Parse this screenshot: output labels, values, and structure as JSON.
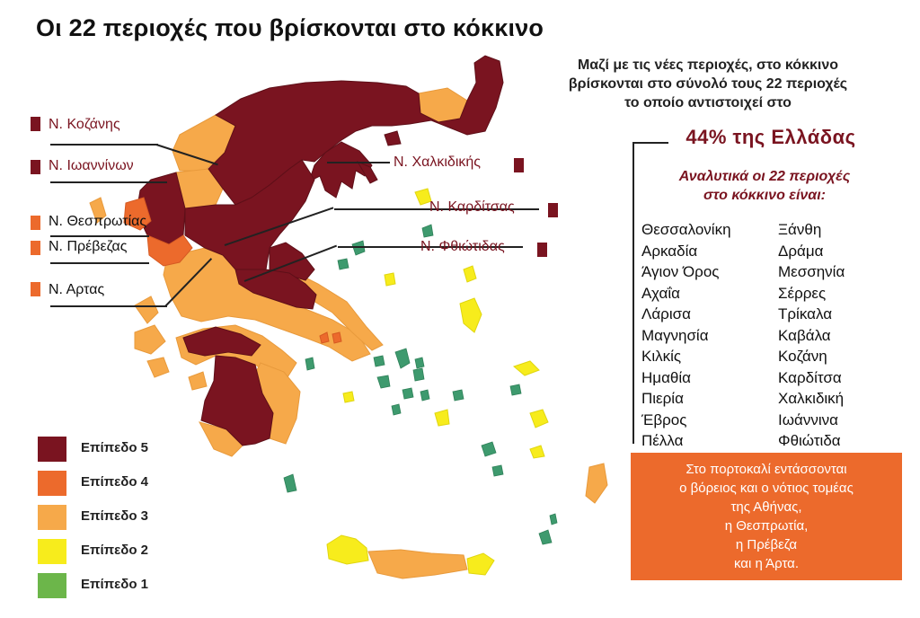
{
  "title": "Οι 22 περιοχές που βρίσκονται στο κόκκινο",
  "intro": [
    "Μαζί με τις νέες περιοχές, στο κόκκινο",
    "βρίσκονται στο σύνολό τους 22 περιοχές",
    "το οποίο αντιστοιχεί στο"
  ],
  "percentage": "44% της Ελλάδας",
  "list_heading": [
    "Αναλυτικά οι 22 περιοχές",
    "στο κόκκινο είναι:"
  ],
  "regions_left": [
    "Θεσσαλονίκη",
    "Αρκαδία",
    "Άγιον Όρος",
    "Αχαΐα",
    "Λάρισα",
    "Μαγνησία",
    "Κιλκίς",
    "Ημαθία",
    "Πιερία",
    "Έβρος",
    "Πέλλα"
  ],
  "regions_right": [
    "Ξάνθη",
    "Δράμα",
    "Μεσσηνία",
    "Σέρρες",
    "Τρίκαλα",
    "Καβάλα",
    "Κοζάνη",
    "Καρδίτσα",
    "Χαλκιδική",
    "Ιωάννινα",
    "Φθιώτιδα"
  ],
  "orange_note": [
    "Στο πορτοκαλί εντάσσονται",
    "ο βόρειος και ο νότιος τομέας",
    "της Αθήνας,",
    "η Θεσπρωτία,",
    "η Πρέβεζα",
    "και η Άρτα."
  ],
  "callouts": {
    "kozani": "Ν. Κοζάνης",
    "ioannina": "Ν. Ιωαννίνων",
    "thesprotia": "Ν. Θεσπρωτίας",
    "preveza": "Ν. Πρέβεζας",
    "arta": "Ν. Αρτας",
    "chalkidiki": "Ν. Χαλκιδικής",
    "karditsa": "Ν. Καρδίτσας",
    "fthiotida": "Ν. Φθιώτιδας"
  },
  "legend": [
    {
      "label": "Επίπεδο 5",
      "color": "#7a1420"
    },
    {
      "label": "Επίπεδο 4",
      "color": "#ec6a2c"
    },
    {
      "label": "Επίπεδο 3",
      "color": "#f6a94a"
    },
    {
      "label": "Επίπεδο 2",
      "color": "#f7ec1c"
    },
    {
      "label": "Επίπεδο 1",
      "color": "#6cb64a"
    }
  ],
  "colors": {
    "level5": "#7a1420",
    "level4": "#ec6a2c",
    "level3": "#f6a94a",
    "level2": "#f7ec1c",
    "level1": "#3e9a6e"
  }
}
